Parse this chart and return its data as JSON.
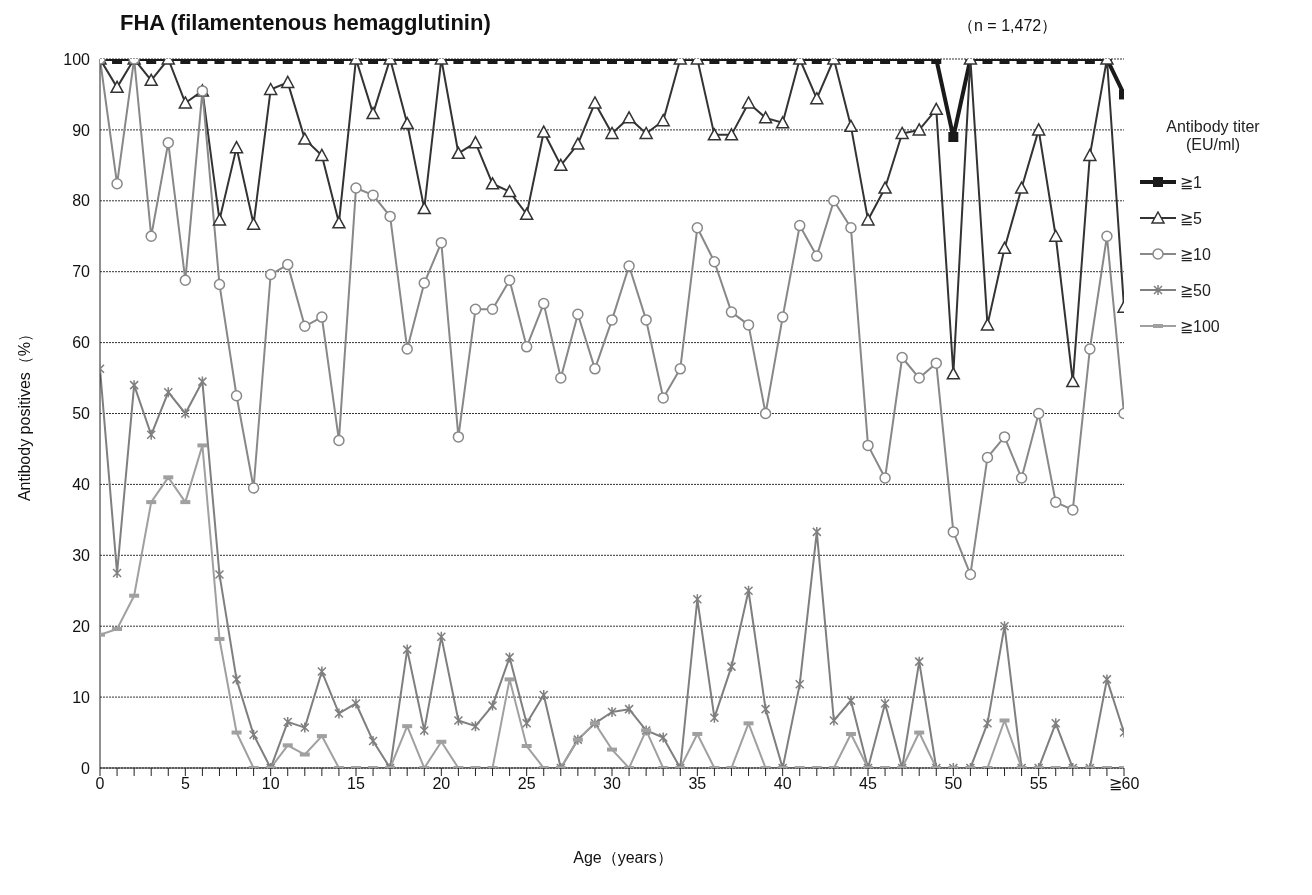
{
  "chart_data": {
    "type": "line",
    "title": "FHA (filamentenous hemagglutinin)",
    "subtitle": "（n = 1,472）",
    "xlabel": "Age（years）",
    "ylabel": "Antibody positives（%）",
    "legend_title": "Antibody titer (EU/ml)",
    "categories": [
      "0",
      null,
      null,
      null,
      null,
      "5",
      null,
      null,
      null,
      null,
      "10",
      null,
      null,
      null,
      null,
      "15",
      null,
      null,
      null,
      null,
      "20",
      null,
      null,
      null,
      null,
      "25",
      null,
      null,
      null,
      null,
      "30",
      null,
      null,
      null,
      null,
      "35",
      null,
      null,
      null,
      null,
      "40",
      null,
      null,
      null,
      null,
      "45",
      null,
      null,
      null,
      null,
      "50",
      null,
      null,
      null,
      null,
      "55",
      null,
      null,
      null,
      null,
      "≧60"
    ],
    "series": [
      {
        "name": "≧1",
        "color": "#1a1a1a",
        "marker": "square",
        "values": [
          100,
          100,
          100,
          100,
          100,
          100,
          100,
          100,
          100,
          100,
          100,
          100,
          100,
          100,
          100,
          100,
          100,
          100,
          100,
          100,
          100,
          100,
          100,
          100,
          100,
          100,
          100,
          100,
          100,
          100,
          100,
          100,
          100,
          100,
          100,
          100,
          100,
          100,
          100,
          100,
          100,
          100,
          100,
          100,
          100,
          100,
          100,
          100,
          100,
          100,
          89,
          100,
          100,
          100,
          100,
          100,
          100,
          100,
          100,
          100,
          95
        ]
      },
      {
        "name": "≧5",
        "color": "#333333",
        "marker": "triangle",
        "values": [
          100,
          96,
          100,
          97,
          100,
          93.8,
          95.5,
          77.3,
          87.5,
          76.7,
          95.7,
          96.7,
          88.7,
          86.4,
          76.9,
          100,
          92.3,
          100,
          90.9,
          78.9,
          100,
          86.7,
          88.2,
          82.4,
          81.3,
          78.1,
          89.7,
          85,
          88,
          93.8,
          89.5,
          91.7,
          89.5,
          91.3,
          100,
          100,
          89.3,
          89.3,
          93.8,
          91.7,
          91,
          100,
          94.4,
          100,
          90.5,
          77.3,
          81.8,
          89.5,
          90,
          92.9,
          55.6,
          100,
          62.5,
          73.3,
          81.8,
          90,
          75,
          54.5,
          86.4,
          100,
          65
        ]
      },
      {
        "name": "≧10",
        "color": "#888888",
        "marker": "circle",
        "values": [
          100,
          82.4,
          100,
          75,
          88.2,
          68.8,
          95.5,
          68.2,
          52.5,
          39.5,
          69.6,
          71,
          62.3,
          63.6,
          46.2,
          81.8,
          80.8,
          77.8,
          59.1,
          68.4,
          74.1,
          46.7,
          64.7,
          64.7,
          68.8,
          59.4,
          65.5,
          55,
          64,
          56.3,
          63.2,
          70.8,
          63.2,
          52.2,
          56.3,
          76.2,
          71.4,
          64.3,
          62.5,
          50,
          63.6,
          76.5,
          72.2,
          80,
          76.2,
          45.5,
          40.9,
          57.9,
          55,
          57.1,
          33.3,
          27.3,
          43.8,
          46.7,
          40.9,
          50,
          37.5,
          36.4,
          59.1,
          75,
          50
        ]
      },
      {
        "name": "≧50",
        "color": "#7f7f7f",
        "marker": "cross",
        "values": [
          56.3,
          27.5,
          54,
          47,
          53,
          50,
          54.5,
          27.3,
          12.5,
          4.7,
          0,
          6.5,
          5.7,
          13.6,
          7.7,
          9.1,
          3.8,
          0,
          16.7,
          5.3,
          18.5,
          6.7,
          5.9,
          8.8,
          15.6,
          6.3,
          10.3,
          0,
          4,
          6.3,
          7.9,
          8.3,
          5.3,
          4.3,
          0,
          23.8,
          7.1,
          14.3,
          25,
          8.3,
          0,
          11.8,
          33.3,
          6.7,
          9.5,
          0,
          9.1,
          0,
          15,
          0,
          0,
          0,
          6.3,
          20,
          0,
          0,
          6.3,
          0,
          0,
          12.5,
          5
        ]
      },
      {
        "name": "≧100",
        "color": "#a0a0a0",
        "marker": "square",
        "values": [
          18.8,
          19.6,
          24.3,
          37.5,
          41,
          37.5,
          45.5,
          18.2,
          5,
          0,
          0,
          3.2,
          1.9,
          4.5,
          0,
          0,
          0,
          0,
          5.9,
          0,
          3.7,
          0,
          0,
          0,
          12.5,
          3.1,
          0,
          0,
          4,
          6.3,
          2.6,
          0,
          5.3,
          0,
          0,
          4.8,
          0,
          0,
          6.3,
          0,
          0,
          0,
          0,
          0,
          4.8,
          0,
          0,
          0,
          5,
          0,
          0,
          0,
          0,
          6.7,
          0,
          0,
          0,
          0,
          0,
          0,
          0
        ]
      }
    ],
    "ylim": [
      0,
      100
    ],
    "yticks": [
      0,
      10,
      20,
      30,
      40,
      50,
      60,
      70,
      80,
      90,
      100
    ],
    "grid": "y",
    "legend": "right"
  }
}
